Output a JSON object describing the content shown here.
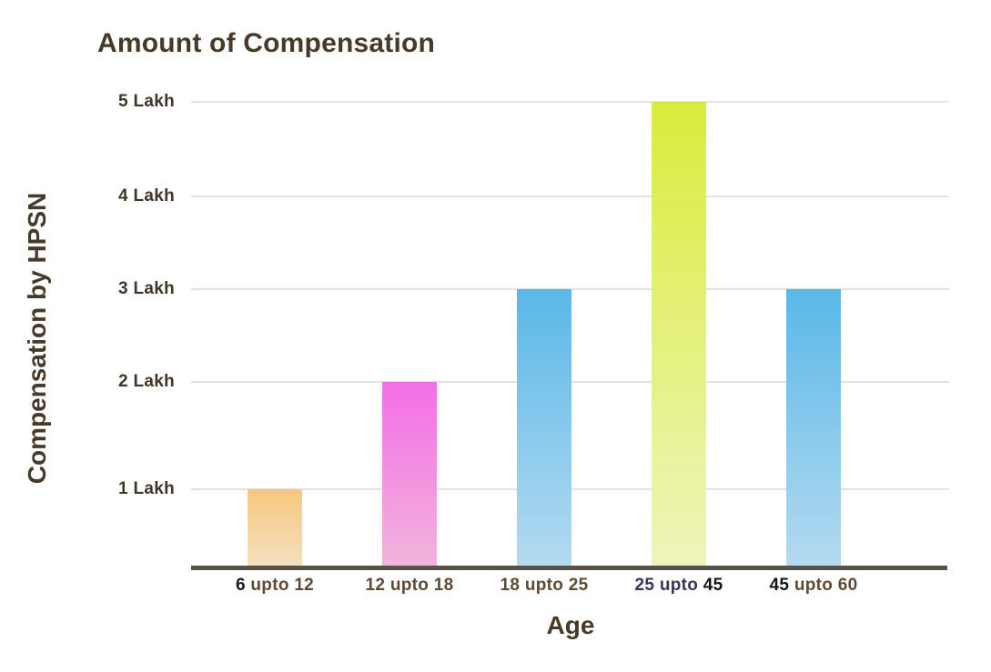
{
  "chart": {
    "background": "#ffffff",
    "title_color": "#473a28",
    "axis_title_color": "#473a28",
    "y_tick_label_color": "#3f3629",
    "axis_line_color": "#59524a",
    "gridline_color": "#e2e2e2"
  },
  "chart_data": {
    "type": "bar",
    "title": "Amount of Compensation",
    "xlabel": "Age",
    "ylabel": "Compensation by HPSN",
    "categories": [
      "6 upto 12",
      "12 upto 18",
      "18 upto 25",
      "25 upto 45",
      "45 upto 60"
    ],
    "values": [
      1,
      2,
      3,
      5,
      3
    ],
    "value_unit": "Lakh",
    "y_tick_labels": [
      "1 Lakh",
      "2 Lakh",
      "3 Lakh",
      "4 Lakh",
      "5 Lakh"
    ],
    "ylim": [
      0,
      5
    ],
    "grid": true,
    "legend": null,
    "bar_gradients": [
      {
        "top": "#f6c77f",
        "bottom": "#f3e0be"
      },
      {
        "top": "#f36ee6",
        "bottom": "#f2b4dc"
      },
      {
        "top": "#5ab8e8",
        "bottom": "#b4daf0"
      },
      {
        "top": "#d9ec3c",
        "bottom": "#eff5bb"
      },
      {
        "top": "#5ab8e8",
        "bottom": "#b4daf0"
      }
    ],
    "x_tick_label_parts": [
      [
        {
          "text": "6",
          "color": "#1c1c1c"
        },
        {
          "text": " upto 12",
          "color": "#5d4a36"
        }
      ],
      [
        {
          "text": "12 upto 18",
          "color": "#5d4a36"
        }
      ],
      [
        {
          "text": "18 upto 25",
          "color": "#5d4a36"
        }
      ],
      [
        {
          "text": "25 upto",
          "color": "#35355c"
        },
        {
          "text": " 45",
          "color": "#151515"
        }
      ],
      [
        {
          "text": "45",
          "color": "#151515"
        },
        {
          "text": " upto 60",
          "color": "#5d4a36"
        }
      ]
    ]
  }
}
